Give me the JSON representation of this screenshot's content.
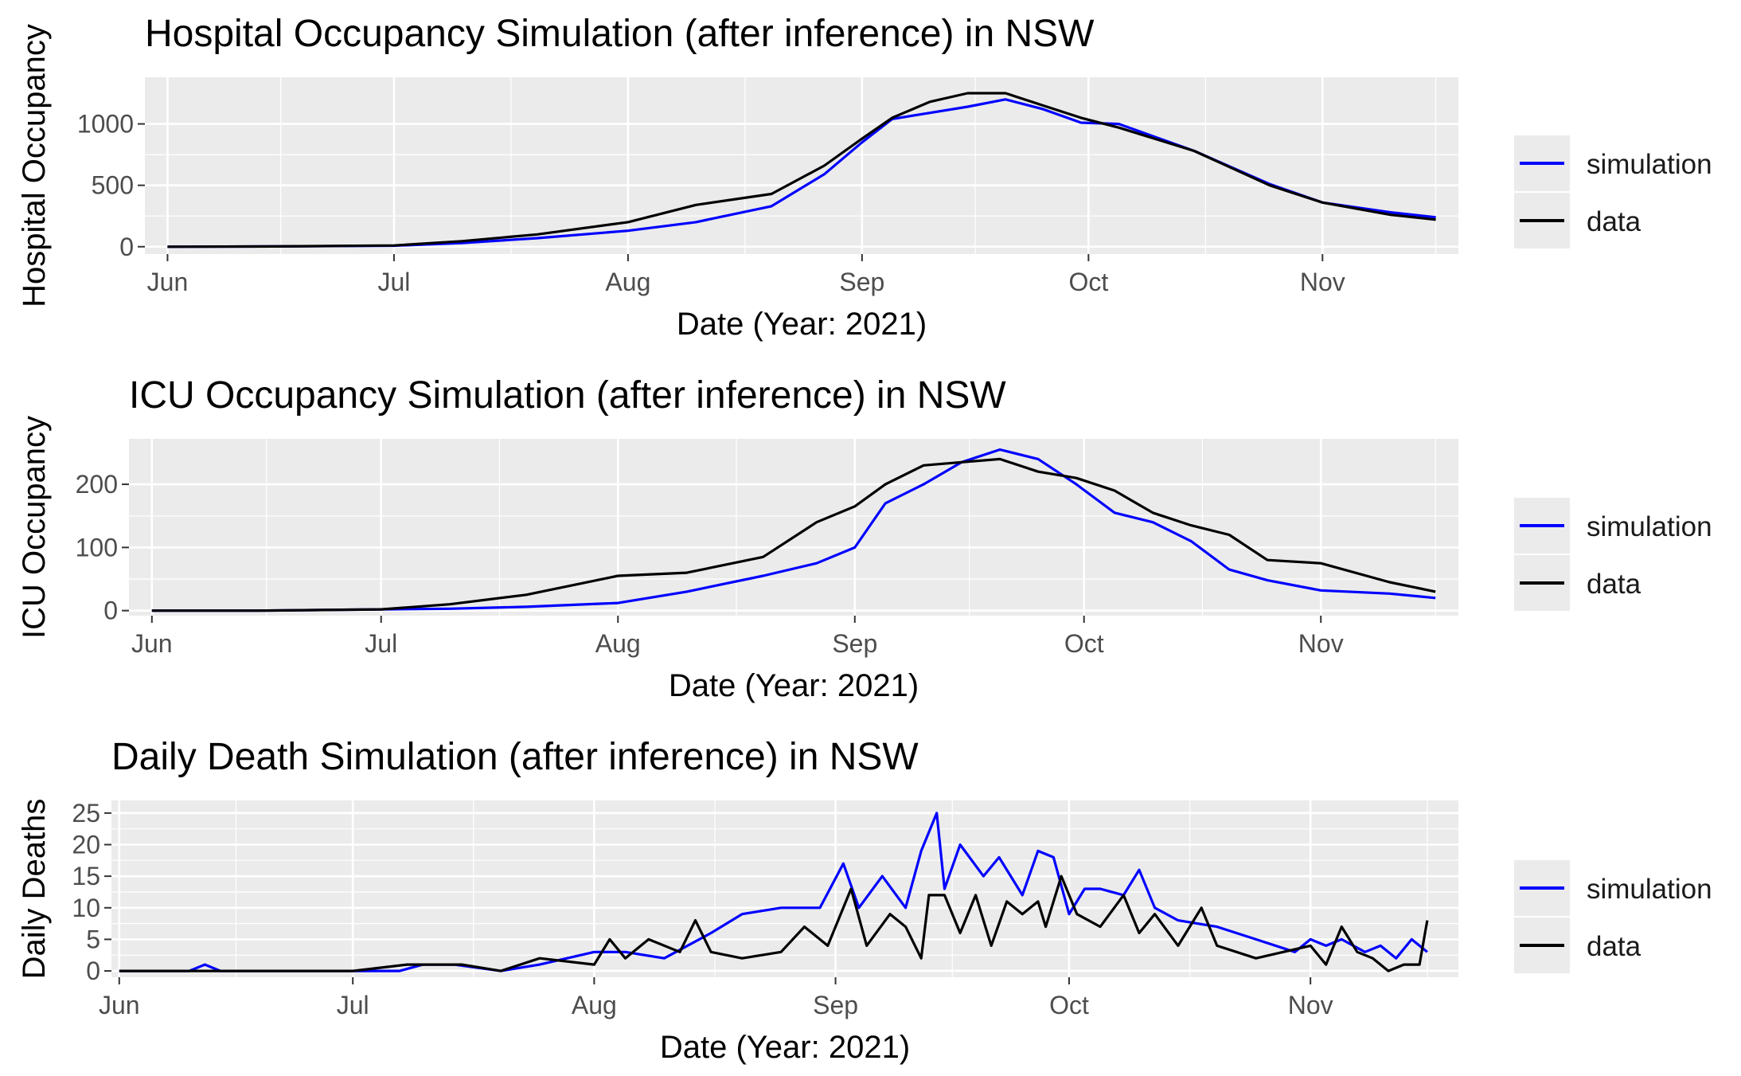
{
  "chart_data": [
    {
      "type": "line",
      "title": "Hospital Occupancy Simulation (after inference) in NSW",
      "xlabel": "Date (Year: 2021)",
      "ylabel": "Hospital Occupancy",
      "x_ticks": [
        "Jun",
        "Jul",
        "Aug",
        "Sep",
        "Oct",
        "Nov"
      ],
      "y_ticks": [
        "0",
        "500",
        "1000"
      ],
      "xlim": [
        "2021-05-29",
        "2021-11-19"
      ],
      "ylim": [
        -60,
        1380
      ],
      "grid": true,
      "legend_position": "right",
      "colors": {
        "simulation": "#0000ff",
        "data": "#000000"
      },
      "series": [
        {
          "name": "simulation",
          "x": [
            "2021-06-01",
            "2021-06-15",
            "2021-07-01",
            "2021-07-10",
            "2021-07-20",
            "2021-08-01",
            "2021-08-10",
            "2021-08-20",
            "2021-08-27",
            "2021-09-01",
            "2021-09-05",
            "2021-09-10",
            "2021-09-15",
            "2021-09-20",
            "2021-09-25",
            "2021-09-30",
            "2021-10-05",
            "2021-10-15",
            "2021-10-25",
            "2021-11-01",
            "2021-11-10",
            "2021-11-16"
          ],
          "values": [
            0,
            2,
            8,
            30,
            70,
            130,
            200,
            330,
            590,
            850,
            1040,
            1090,
            1140,
            1200,
            1120,
            1010,
            1000,
            780,
            510,
            360,
            280,
            240
          ]
        },
        {
          "name": "data",
          "x": [
            "2021-06-01",
            "2021-06-15",
            "2021-07-01",
            "2021-07-10",
            "2021-07-20",
            "2021-08-01",
            "2021-08-10",
            "2021-08-20",
            "2021-08-27",
            "2021-09-01",
            "2021-09-05",
            "2021-09-10",
            "2021-09-15",
            "2021-09-20",
            "2021-09-25",
            "2021-09-30",
            "2021-10-05",
            "2021-10-15",
            "2021-10-25",
            "2021-11-01",
            "2021-11-10",
            "2021-11-16"
          ],
          "values": [
            0,
            2,
            10,
            45,
            100,
            200,
            340,
            430,
            660,
            880,
            1050,
            1180,
            1250,
            1250,
            1150,
            1050,
            970,
            780,
            500,
            360,
            260,
            220
          ]
        }
      ]
    },
    {
      "type": "line",
      "title": "ICU Occupancy Simulation (after inference) in NSW",
      "xlabel": "Date (Year: 2021)",
      "ylabel": "ICU Occupancy",
      "x_ticks": [
        "Jun",
        "Jul",
        "Aug",
        "Sep",
        "Oct",
        "Nov"
      ],
      "y_ticks": [
        "0",
        "100",
        "200"
      ],
      "xlim": [
        "2021-05-29",
        "2021-11-19"
      ],
      "ylim": [
        -8,
        272
      ],
      "grid": true,
      "legend_position": "right",
      "colors": {
        "simulation": "#0000ff",
        "data": "#000000"
      },
      "series": [
        {
          "name": "simulation",
          "x": [
            "2021-06-01",
            "2021-06-15",
            "2021-07-01",
            "2021-07-10",
            "2021-07-20",
            "2021-08-01",
            "2021-08-10",
            "2021-08-20",
            "2021-08-27",
            "2021-09-01",
            "2021-09-05",
            "2021-09-10",
            "2021-09-15",
            "2021-09-20",
            "2021-09-25",
            "2021-09-30",
            "2021-10-05",
            "2021-10-10",
            "2021-10-15",
            "2021-10-20",
            "2021-10-25",
            "2021-11-01",
            "2021-11-10",
            "2021-11-16"
          ],
          "values": [
            0,
            0,
            2,
            3,
            6,
            12,
            30,
            55,
            75,
            100,
            170,
            200,
            235,
            255,
            240,
            200,
            155,
            140,
            110,
            65,
            48,
            32,
            27,
            20
          ]
        },
        {
          "name": "data",
          "x": [
            "2021-06-01",
            "2021-06-15",
            "2021-07-01",
            "2021-07-10",
            "2021-07-20",
            "2021-08-01",
            "2021-08-10",
            "2021-08-20",
            "2021-08-27",
            "2021-09-01",
            "2021-09-05",
            "2021-09-10",
            "2021-09-15",
            "2021-09-20",
            "2021-09-25",
            "2021-09-30",
            "2021-10-05",
            "2021-10-10",
            "2021-10-15",
            "2021-10-20",
            "2021-10-25",
            "2021-11-01",
            "2021-11-10",
            "2021-11-16"
          ],
          "values": [
            0,
            0,
            2,
            10,
            25,
            55,
            60,
            85,
            140,
            165,
            200,
            230,
            235,
            240,
            220,
            210,
            190,
            155,
            135,
            120,
            80,
            75,
            45,
            30
          ]
        }
      ]
    },
    {
      "type": "line",
      "title": "Daily Death Simulation (after inference) in NSW",
      "xlabel": "Date (Year: 2021)",
      "ylabel": "Daily Deaths",
      "x_ticks": [
        "Jun",
        "Jul",
        "Aug",
        "Sep",
        "Oct",
        "Nov"
      ],
      "y_ticks": [
        "0",
        "5",
        "10",
        "15",
        "20",
        "25"
      ],
      "xlim": [
        "2021-05-31",
        "2021-11-20"
      ],
      "ylim": [
        -1,
        27
      ],
      "grid": true,
      "legend_position": "right",
      "colors": {
        "simulation": "#0000ff",
        "data": "#000000"
      },
      "series": [
        {
          "name": "simulation",
          "x": [
            "2021-06-01",
            "2021-06-10",
            "2021-06-12",
            "2021-06-14",
            "2021-07-07",
            "2021-07-10",
            "2021-07-14",
            "2021-07-20",
            "2021-07-25",
            "2021-08-01",
            "2021-08-05",
            "2021-08-10",
            "2021-08-16",
            "2021-08-20",
            "2021-08-25",
            "2021-08-30",
            "2021-09-02",
            "2021-09-04",
            "2021-09-07",
            "2021-09-10",
            "2021-09-12",
            "2021-09-14",
            "2021-09-15",
            "2021-09-17",
            "2021-09-20",
            "2021-09-22",
            "2021-09-25",
            "2021-09-27",
            "2021-09-29",
            "2021-10-01",
            "2021-10-03",
            "2021-10-05",
            "2021-10-08",
            "2021-10-10",
            "2021-10-12",
            "2021-10-15",
            "2021-10-20",
            "2021-10-25",
            "2021-10-30",
            "2021-11-01",
            "2021-11-03",
            "2021-11-05",
            "2021-11-08",
            "2021-11-10",
            "2021-11-12",
            "2021-11-14",
            "2021-11-16"
          ],
          "values": [
            0,
            0,
            1,
            0,
            0,
            1,
            1,
            0,
            1,
            3,
            3,
            2,
            6,
            9,
            10,
            10,
            17,
            10,
            15,
            10,
            19,
            25,
            13,
            20,
            15,
            18,
            12,
            19,
            18,
            9,
            13,
            13,
            12,
            16,
            10,
            8,
            7,
            5,
            3,
            5,
            4,
            5,
            3,
            4,
            2,
            5,
            3
          ]
        },
        {
          "name": "data",
          "x": [
            "2021-06-01",
            "2021-06-15",
            "2021-07-01",
            "2021-07-08",
            "2021-07-15",
            "2021-07-20",
            "2021-07-25",
            "2021-08-01",
            "2021-08-03",
            "2021-08-05",
            "2021-08-08",
            "2021-08-12",
            "2021-08-14",
            "2021-08-16",
            "2021-08-20",
            "2021-08-25",
            "2021-08-28",
            "2021-08-31",
            "2021-09-03",
            "2021-09-05",
            "2021-09-08",
            "2021-09-10",
            "2021-09-12",
            "2021-09-13",
            "2021-09-15",
            "2021-09-17",
            "2021-09-19",
            "2021-09-21",
            "2021-09-23",
            "2021-09-25",
            "2021-09-27",
            "2021-09-28",
            "2021-09-30",
            "2021-10-02",
            "2021-10-05",
            "2021-10-08",
            "2021-10-10",
            "2021-10-12",
            "2021-10-15",
            "2021-10-18",
            "2021-10-20",
            "2021-10-25",
            "2021-11-01",
            "2021-11-03",
            "2021-11-05",
            "2021-11-07",
            "2021-11-09",
            "2021-11-11",
            "2021-11-13",
            "2021-11-15",
            "2021-11-16"
          ],
          "values": [
            0,
            0,
            0,
            1,
            1,
            0,
            2,
            1,
            5,
            2,
            5,
            3,
            8,
            3,
            2,
            3,
            7,
            4,
            13,
            4,
            9,
            7,
            2,
            12,
            12,
            6,
            12,
            4,
            11,
            9,
            11,
            7,
            15,
            9,
            7,
            12,
            6,
            9,
            4,
            10,
            4,
            2,
            4,
            1,
            7,
            3,
            2,
            0,
            1,
            1,
            8
          ]
        }
      ]
    }
  ],
  "legend": {
    "simulation_label": "simulation",
    "data_label": "data"
  }
}
